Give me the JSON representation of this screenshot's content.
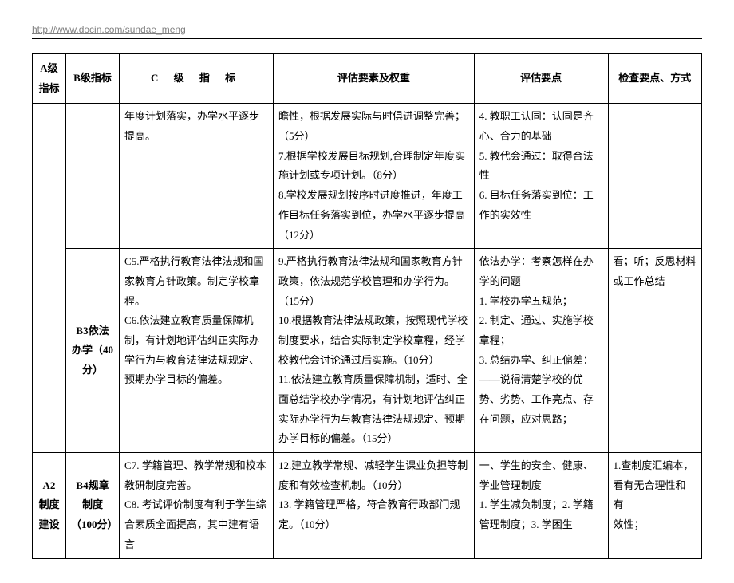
{
  "url_header": "http://www.docin.com/sundae_meng",
  "headers": {
    "colA": "A级指标",
    "colB": "B级指标",
    "colC": "C 级 指 标",
    "colD": "评估要素及权重",
    "colE": "评估要点",
    "colF": "检查要点、方式"
  },
  "rows": [
    {
      "a": "",
      "b": "",
      "c": "年度计划落实，办学水平逐步提高。",
      "d": "瞻性，根据发展实际与时俱进调整完善；（5分）\n7.根据学校发展目标规划,合理制定年度实施计划或专项计划。（8分）\n8.学校发展规划按序时进度推进，年度工作目标任务落实到位，办学水平逐步提高（12分）",
      "e": "4. 教职工认同：认同是齐心、合力的基础\n5. 教代会通过：取得合法性\n6. 目标任务落实到位：工作的实效性",
      "f": ""
    },
    {
      "a": "",
      "b": "B3依法办学（40分）",
      "c": "C5.严格执行教育法律法规和国家教育方针政策。制定学校章程。\nC6.依法建立教育质量保障机制，有计划地评估纠正实际办学行为与教育法律法规规定、预期办学目标的偏差。",
      "d": "9.严格执行教育法律法规和国家教育方针政策，依法规范学校管理和办学行为。（15分）\n10.根据教育法律法规政策，按照现代学校制度要求，结合实际制定学校章程，经学校教代会讨论通过后实施。（10分）\n11.依法建立教育质量保障机制，适时、全面总结学校办学情况，有计划地评估纠正实际办学行为与教育法律法规规定、预期办学目标的偏差。（15分）",
      "e": "依法办学：考察怎样在办学的问题\n1. 学校办学五规范；\n2. 制定、通过、实施学校章程；\n3. 总结办学、纠正偏差：——说得清楚学校的优势、劣势、工作亮点、存在问题，应对思路；",
      "f": "看；听；反思材料或工作总结"
    },
    {
      "a": "A2\n制度\n建设",
      "b": "B4规章制度（100分）",
      "c": "C7. 学籍管理、教学常规和校本教研制度完善。\nC8. 考试评价制度有利于学生综合素质全面提高，其中建有语言",
      "d": "12.建立教学常规、减轻学生课业负担等制度和有效检查机制。（10分）\n13. 学籍管理严格，符合教育行政部门规定。（10分）",
      "e": "一、学生的安全、健康、学业管理制度\n1. 学生减负制度；2. 学籍管理制度；3. 学困生",
      "f": "1.查制度汇编本，看有无合理性和\n有\n效性；"
    }
  ]
}
